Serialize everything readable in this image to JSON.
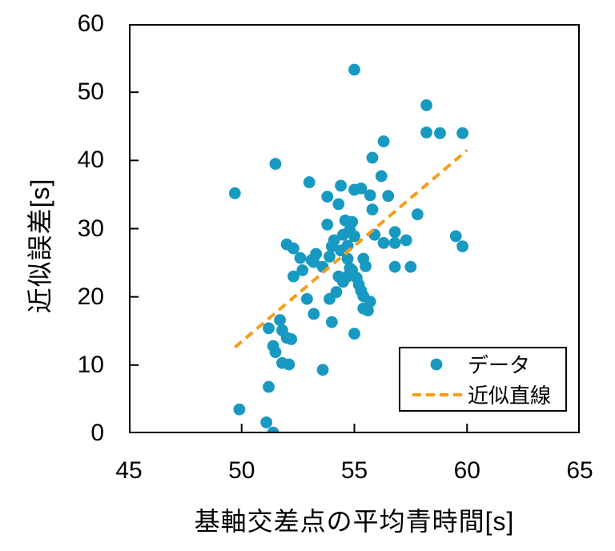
{
  "chart_data": {
    "type": "scatter",
    "title": "",
    "xlabel": "基軸交差点の平均青時間[s]",
    "ylabel": "近似誤差[s]",
    "xlim": [
      45,
      65
    ],
    "ylim": [
      0,
      60
    ],
    "xticks": [
      45,
      50,
      55,
      60,
      65
    ],
    "yticks": [
      0,
      10,
      20,
      30,
      40,
      50,
      60
    ],
    "grid": false,
    "legend_position": "inside-bottom-right",
    "series": [
      {
        "name": "データ",
        "type": "scatter",
        "color": "#1899C2",
        "marker_radius": 7.4,
        "points": [
          [
            55.0,
            53.3
          ],
          [
            58.2,
            48.1
          ],
          [
            58.2,
            44.1
          ],
          [
            58.8,
            44.0
          ],
          [
            59.8,
            44.0
          ],
          [
            56.3,
            42.8
          ],
          [
            55.8,
            40.4
          ],
          [
            51.5,
            39.5
          ],
          [
            56.2,
            37.7
          ],
          [
            53.0,
            36.8
          ],
          [
            49.7,
            35.2
          ],
          [
            54.4,
            36.3
          ],
          [
            55.0,
            35.7
          ],
          [
            55.3,
            35.9
          ],
          [
            55.7,
            34.9
          ],
          [
            53.8,
            34.7
          ],
          [
            56.5,
            34.8
          ],
          [
            54.3,
            33.6
          ],
          [
            55.8,
            32.8
          ],
          [
            57.8,
            32.1
          ],
          [
            54.6,
            31.2
          ],
          [
            54.9,
            31.0
          ],
          [
            53.8,
            30.6
          ],
          [
            54.8,
            29.8
          ],
          [
            54.5,
            29.1
          ],
          [
            55.0,
            28.9
          ],
          [
            54.1,
            28.3
          ],
          [
            55.9,
            29.1
          ],
          [
            56.3,
            27.9
          ],
          [
            54.0,
            27.4
          ],
          [
            56.8,
            29.5
          ],
          [
            57.3,
            28.3
          ],
          [
            56.8,
            27.9
          ],
          [
            59.5,
            28.9
          ],
          [
            59.8,
            27.4
          ],
          [
            52.0,
            27.7
          ],
          [
            52.3,
            27.1
          ],
          [
            52.6,
            25.7
          ],
          [
            53.2,
            25.1
          ],
          [
            53.3,
            26.3
          ],
          [
            54.4,
            26.8
          ],
          [
            53.9,
            25.9
          ],
          [
            54.7,
            25.6
          ],
          [
            53.1,
            25.4
          ],
          [
            55.4,
            25.6
          ],
          [
            54.7,
            27.5
          ],
          [
            53.6,
            24.4
          ],
          [
            54.8,
            24.2
          ],
          [
            55.5,
            24.5
          ],
          [
            56.8,
            24.4
          ],
          [
            57.5,
            24.4
          ],
          [
            54.9,
            23.9
          ],
          [
            52.3,
            23.0
          ],
          [
            52.7,
            23.9
          ],
          [
            54.3,
            23.0
          ],
          [
            54.7,
            23.0
          ],
          [
            55.1,
            22.8
          ],
          [
            54.5,
            22.2
          ],
          [
            55.2,
            21.8
          ],
          [
            55.4,
            20.1
          ],
          [
            55.7,
            19.3
          ],
          [
            55.4,
            18.3
          ],
          [
            55.6,
            18.0
          ],
          [
            54.2,
            20.7
          ],
          [
            55.3,
            20.9
          ],
          [
            55.0,
            14.6
          ],
          [
            52.9,
            19.7
          ],
          [
            53.9,
            19.7
          ],
          [
            53.2,
            17.5
          ],
          [
            54.0,
            16.3
          ],
          [
            51.2,
            15.4
          ],
          [
            51.7,
            16.6
          ],
          [
            51.8,
            15.1
          ],
          [
            52.0,
            14.0
          ],
          [
            52.2,
            13.8
          ],
          [
            51.4,
            12.8
          ],
          [
            51.5,
            11.9
          ],
          [
            51.8,
            10.3
          ],
          [
            52.1,
            10.1
          ],
          [
            53.6,
            9.3
          ],
          [
            51.2,
            6.8
          ],
          [
            49.9,
            3.5
          ],
          [
            51.1,
            1.6
          ],
          [
            51.4,
            0.1
          ]
        ]
      },
      {
        "name": "近似直線",
        "type": "line-dashed",
        "color": "#F99C1A",
        "points": [
          [
            49.7,
            12.6
          ],
          [
            60.0,
            41.5
          ]
        ]
      }
    ]
  },
  "colors": {
    "axis": "#000000",
    "background": "#ffffff"
  }
}
